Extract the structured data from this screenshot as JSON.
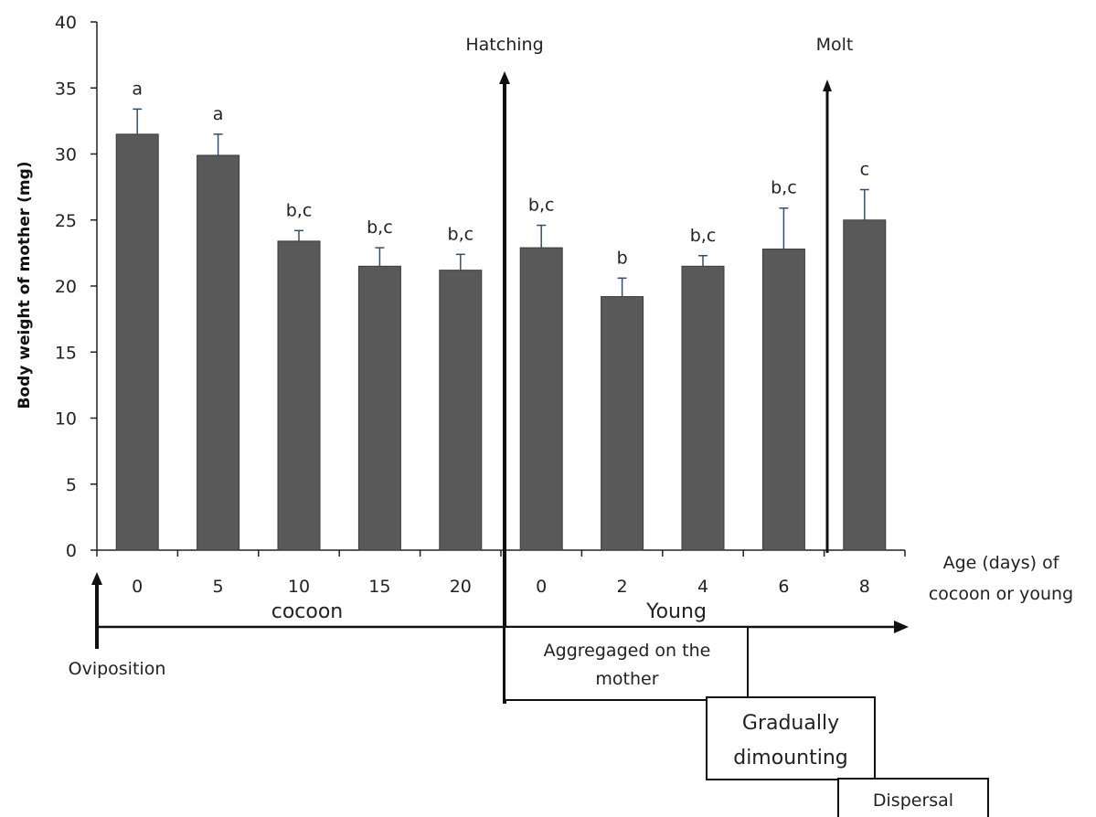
{
  "chart_data": {
    "type": "bar",
    "ylabel": "Body  weight of mother (mg)",
    "xlabel": "Age (days) of cocoon or young",
    "xlabel_lines": [
      "Age (days)  of",
      "cocoon or young"
    ],
    "ylim": [
      0,
      40
    ],
    "yticks": [
      0,
      5,
      10,
      15,
      20,
      25,
      30,
      35,
      40
    ],
    "categories": [
      "0",
      "5",
      "10",
      "15",
      "20",
      "0",
      "2",
      "4",
      "6",
      "8"
    ],
    "values": [
      31.5,
      29.9,
      23.4,
      21.5,
      21.2,
      22.9,
      19.2,
      21.5,
      22.8,
      25.0
    ],
    "errors": [
      1.9,
      1.6,
      0.8,
      1.4,
      1.2,
      1.7,
      1.4,
      0.8,
      3.1,
      2.3
    ],
    "significance": [
      "a",
      "a",
      "b,c",
      "b,c",
      "b,c",
      "b,c",
      "b",
      "b,c",
      "b,c",
      "c"
    ],
    "bar_color": "#595959",
    "grid": false,
    "annotations": {
      "hatching": "Hatching",
      "molt": "Molt",
      "cocoon": "cocoon",
      "young": "Young",
      "oviposition": "Oviposition",
      "aggregated_lines": [
        "Aggregaged on the",
        "mother"
      ],
      "dismounting_lines": [
        "Gradually",
        "dimounting"
      ],
      "dispersal": "Dispersal"
    }
  }
}
